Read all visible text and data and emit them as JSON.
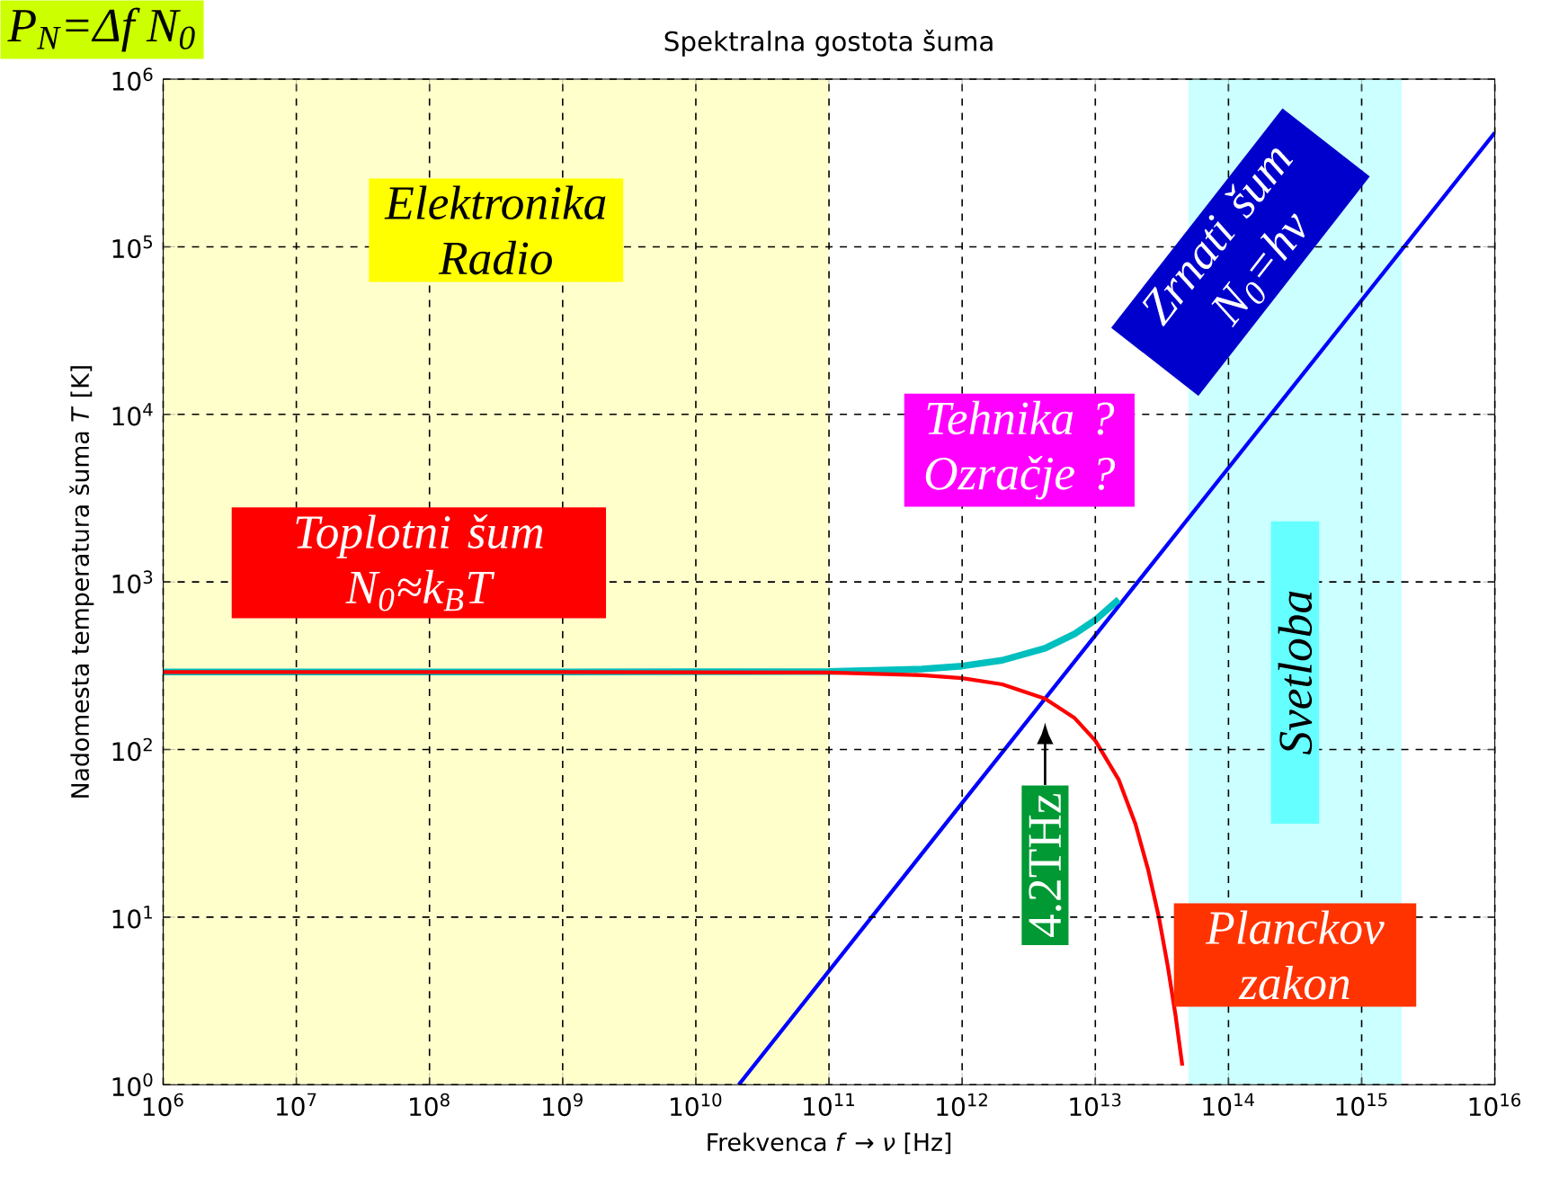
{
  "chart_data": {
    "type": "line",
    "title": "Spektralna gostota šuma",
    "xlabel": "Frekvenca *f* → *ν* [Hz]",
    "ylabel": "Nadomesta temperatura šuma *T* [K]",
    "log": "xy",
    "grid": true,
    "marker": "none",
    "line_style": "solid",
    "xlim": [
      1000000,
      1e+16
    ],
    "ylim": [
      1,
      1000000
    ],
    "xticks": [
      {
        "value": 1000000.0,
        "label": "10$^{6}$"
      },
      {
        "value": 10000000.0,
        "label": "10$^{7}$"
      },
      {
        "value": 100000000.0,
        "label": "10$^{8}$"
      },
      {
        "value": 1000000000.0,
        "label": "10$^{9}$"
      },
      {
        "value": 10000000000.0,
        "label": "10$^{10}$"
      },
      {
        "value": 100000000000.0,
        "label": "10$^{11}$"
      },
      {
        "value": 1000000000000.0,
        "label": "10$^{12}$"
      },
      {
        "value": 10000000000000.0,
        "label": "10$^{13}$"
      },
      {
        "value": 100000000000000.0,
        "label": "10$^{14}$"
      },
      {
        "value": 1000000000000000.0,
        "label": "10$^{15}$"
      },
      {
        "value": 1e+16,
        "label": "10$^{16}$"
      }
    ],
    "yticks": [
      {
        "value": 1,
        "label": "10$^{0}$"
      },
      {
        "value": 10,
        "label": "10$^{1}$"
      },
      {
        "value": 100,
        "label": "10$^{2}$"
      },
      {
        "value": 1000,
        "label": "10$^{3}$"
      },
      {
        "value": 10000,
        "label": "10$^{4}$"
      },
      {
        "value": 100000,
        "label": "10$^{5}$"
      },
      {
        "value": 1000000,
        "label": "10$^{6}$"
      }
    ],
    "series": [
      {
        "color": "#ff0000",
        "x": [
          1000000.0,
          1000000000.0,
          100000000000.0,
          500000000000.0,
          1000000000000.0,
          2000000000000.0,
          4200000000000.0,
          7000000000000.0,
          10000000000000.0,
          15000000000000.0,
          20000000000000.0,
          25000000000000.0,
          30000000000000.0,
          35000000000000.0,
          40000000000000.0,
          45000000000000.0
        ],
        "values": [
          290,
          290,
          288,
          278,
          267,
          245,
          201,
          154,
          113,
          66,
          36,
          19,
          10,
          5.1,
          2.6,
          1.3
        ]
      },
      {
        "color": "#00bfbf",
        "x": [
          1000000.0,
          1000000000.0,
          100000000000.0,
          500000000000.0,
          1000000000000.0,
          2000000000000.0,
          4200000000000.0,
          7000000000000.0,
          10000000000000.0,
          15000000000000.0
        ],
        "values": [
          290,
          290,
          292,
          302,
          315,
          341,
          402,
          490,
          593,
          786
        ]
      },
      {
        "color": "#0000ff",
        "x": [
          21000000000.0,
          1000000000000.0,
          100000000000000.0,
          1e+16
        ],
        "values": [
          1,
          48,
          4800,
          480000
        ]
      }
    ],
    "bands": [
      {
        "axis": "x",
        "from": 1000000.0,
        "to": 100000000000.0,
        "label": "Elektronika Radio",
        "color": "#ffffcc"
      },
      {
        "axis": "x",
        "from": 50000000000000.0,
        "to": 2000000000000000.0,
        "label": "Svetloba",
        "color": "#ccffff"
      }
    ],
    "annotations": [
      "Toplotni šum N$_{0}$≈k$_{B}$T",
      "Tehnika ? Ozračje ?",
      "Zrnati šum N$_{0}$=hν",
      "4.2THz",
      "Planckov zakon",
      "P$_{N}$=Δf N$_{0}$"
    ]
  }
}
